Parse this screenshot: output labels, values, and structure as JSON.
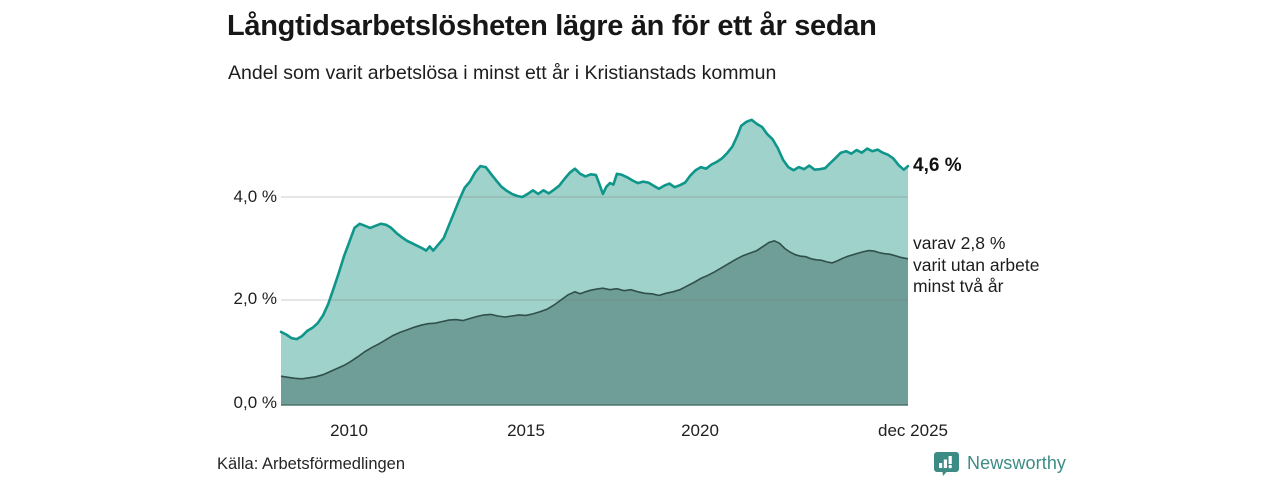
{
  "header": {
    "title": "Långtidsarbetslösheten lägre än för ett år sedan",
    "subtitle": "Andel som varit arbetslösa i minst ett år i Kristianstads kommun"
  },
  "chart_data": {
    "type": "area",
    "title": "Långtidsarbetslösheten lägre än för ett år sedan",
    "subtitle": "Andel som varit arbetslösa i minst ett år i Kristianstads kommun",
    "x_axis": {
      "min": 2008.0,
      "max": 2025.92,
      "ticks": [
        {
          "label": "2010",
          "year": 2010
        },
        {
          "label": "2015",
          "year": 2015
        },
        {
          "label": "2020",
          "year": 2020
        },
        {
          "label": "dec 2025",
          "year": 2025.92
        }
      ]
    },
    "y_axis": {
      "min": 0,
      "max": 5.7,
      "unit": "%",
      "ticks": [
        {
          "label": "0,0 %",
          "value": 0
        },
        {
          "label": "2,0 %",
          "value": 2
        },
        {
          "label": "4,0 %",
          "value": 4
        }
      ],
      "gridline_values": [
        2,
        4
      ]
    },
    "colors": {
      "line_total": "#0f968a",
      "fill_total": "#9fd2cb",
      "line_subset": "#31504b",
      "fill_subset": "#6f9d98",
      "axis_line": "#4e7b74",
      "gridline": "rgba(120,120,120,0.30)"
    },
    "series": [
      {
        "name": "Arbetslösa minst ett år",
        "end_value": 4.6,
        "points": [
          [
            2008.0,
            1.38
          ],
          [
            2008.15,
            1.33
          ],
          [
            2008.3,
            1.26
          ],
          [
            2008.45,
            1.24
          ],
          [
            2008.6,
            1.3
          ],
          [
            2008.75,
            1.4
          ],
          [
            2008.9,
            1.46
          ],
          [
            2009.05,
            1.55
          ],
          [
            2009.2,
            1.7
          ],
          [
            2009.35,
            1.92
          ],
          [
            2009.5,
            2.22
          ],
          [
            2009.65,
            2.52
          ],
          [
            2009.8,
            2.85
          ],
          [
            2009.95,
            3.12
          ],
          [
            2010.1,
            3.4
          ],
          [
            2010.25,
            3.48
          ],
          [
            2010.4,
            3.44
          ],
          [
            2010.55,
            3.4
          ],
          [
            2010.7,
            3.44
          ],
          [
            2010.85,
            3.48
          ],
          [
            2011.0,
            3.46
          ],
          [
            2011.15,
            3.4
          ],
          [
            2011.3,
            3.3
          ],
          [
            2011.45,
            3.22
          ],
          [
            2011.6,
            3.15
          ],
          [
            2011.75,
            3.1
          ],
          [
            2011.9,
            3.05
          ],
          [
            2012.05,
            3.0
          ],
          [
            2012.15,
            2.96
          ],
          [
            2012.25,
            3.04
          ],
          [
            2012.35,
            2.96
          ],
          [
            2012.5,
            3.08
          ],
          [
            2012.65,
            3.2
          ],
          [
            2012.8,
            3.45
          ],
          [
            2012.95,
            3.7
          ],
          [
            2013.1,
            3.95
          ],
          [
            2013.25,
            4.18
          ],
          [
            2013.4,
            4.3
          ],
          [
            2013.55,
            4.48
          ],
          [
            2013.7,
            4.6
          ],
          [
            2013.85,
            4.58
          ],
          [
            2014.0,
            4.45
          ],
          [
            2014.15,
            4.32
          ],
          [
            2014.3,
            4.2
          ],
          [
            2014.45,
            4.12
          ],
          [
            2014.6,
            4.06
          ],
          [
            2014.75,
            4.02
          ],
          [
            2014.9,
            4.0
          ],
          [
            2015.05,
            4.06
          ],
          [
            2015.2,
            4.13
          ],
          [
            2015.35,
            4.06
          ],
          [
            2015.5,
            4.13
          ],
          [
            2015.65,
            4.07
          ],
          [
            2015.8,
            4.14
          ],
          [
            2015.95,
            4.22
          ],
          [
            2016.1,
            4.35
          ],
          [
            2016.25,
            4.47
          ],
          [
            2016.4,
            4.55
          ],
          [
            2016.55,
            4.45
          ],
          [
            2016.7,
            4.4
          ],
          [
            2016.85,
            4.44
          ],
          [
            2017.0,
            4.43
          ],
          [
            2017.1,
            4.25
          ],
          [
            2017.2,
            4.06
          ],
          [
            2017.3,
            4.2
          ],
          [
            2017.4,
            4.27
          ],
          [
            2017.5,
            4.24
          ],
          [
            2017.6,
            4.45
          ],
          [
            2017.75,
            4.43
          ],
          [
            2017.9,
            4.38
          ],
          [
            2018.05,
            4.32
          ],
          [
            2018.2,
            4.27
          ],
          [
            2018.35,
            4.3
          ],
          [
            2018.5,
            4.28
          ],
          [
            2018.65,
            4.22
          ],
          [
            2018.8,
            4.16
          ],
          [
            2018.95,
            4.22
          ],
          [
            2019.1,
            4.26
          ],
          [
            2019.25,
            4.19
          ],
          [
            2019.4,
            4.23
          ],
          [
            2019.55,
            4.28
          ],
          [
            2019.7,
            4.42
          ],
          [
            2019.85,
            4.52
          ],
          [
            2020.0,
            4.58
          ],
          [
            2020.15,
            4.55
          ],
          [
            2020.3,
            4.63
          ],
          [
            2020.45,
            4.68
          ],
          [
            2020.6,
            4.75
          ],
          [
            2020.75,
            4.85
          ],
          [
            2020.9,
            4.98
          ],
          [
            2021.05,
            5.2
          ],
          [
            2021.15,
            5.38
          ],
          [
            2021.3,
            5.46
          ],
          [
            2021.45,
            5.5
          ],
          [
            2021.6,
            5.42
          ],
          [
            2021.75,
            5.36
          ],
          [
            2021.9,
            5.22
          ],
          [
            2022.05,
            5.12
          ],
          [
            2022.2,
            4.95
          ],
          [
            2022.35,
            4.72
          ],
          [
            2022.5,
            4.58
          ],
          [
            2022.65,
            4.52
          ],
          [
            2022.8,
            4.58
          ],
          [
            2022.95,
            4.54
          ],
          [
            2023.1,
            4.61
          ],
          [
            2023.25,
            4.53
          ],
          [
            2023.4,
            4.54
          ],
          [
            2023.55,
            4.56
          ],
          [
            2023.7,
            4.66
          ],
          [
            2023.85,
            4.76
          ],
          [
            2024.0,
            4.86
          ],
          [
            2024.15,
            4.89
          ],
          [
            2024.3,
            4.84
          ],
          [
            2024.45,
            4.91
          ],
          [
            2024.6,
            4.86
          ],
          [
            2024.75,
            4.94
          ],
          [
            2024.9,
            4.89
          ],
          [
            2025.05,
            4.92
          ],
          [
            2025.2,
            4.86
          ],
          [
            2025.35,
            4.82
          ],
          [
            2025.5,
            4.75
          ],
          [
            2025.65,
            4.62
          ],
          [
            2025.8,
            4.53
          ],
          [
            2025.92,
            4.6
          ]
        ]
      },
      {
        "name": "varav utan arbete minst två år",
        "end_value": 2.8,
        "points": [
          [
            2008.0,
            0.52
          ],
          [
            2008.2,
            0.5
          ],
          [
            2008.4,
            0.48
          ],
          [
            2008.6,
            0.47
          ],
          [
            2008.8,
            0.49
          ],
          [
            2009.0,
            0.51
          ],
          [
            2009.2,
            0.55
          ],
          [
            2009.4,
            0.61
          ],
          [
            2009.6,
            0.67
          ],
          [
            2009.8,
            0.73
          ],
          [
            2010.0,
            0.81
          ],
          [
            2010.2,
            0.9
          ],
          [
            2010.4,
            1.0
          ],
          [
            2010.6,
            1.08
          ],
          [
            2010.8,
            1.15
          ],
          [
            2011.0,
            1.23
          ],
          [
            2011.2,
            1.31
          ],
          [
            2011.4,
            1.37
          ],
          [
            2011.6,
            1.42
          ],
          [
            2011.8,
            1.47
          ],
          [
            2012.0,
            1.51
          ],
          [
            2012.2,
            1.54
          ],
          [
            2012.4,
            1.55
          ],
          [
            2012.6,
            1.58
          ],
          [
            2012.8,
            1.61
          ],
          [
            2013.0,
            1.62
          ],
          [
            2013.2,
            1.6
          ],
          [
            2013.4,
            1.64
          ],
          [
            2013.6,
            1.68
          ],
          [
            2013.8,
            1.71
          ],
          [
            2014.0,
            1.72
          ],
          [
            2014.2,
            1.69
          ],
          [
            2014.4,
            1.67
          ],
          [
            2014.6,
            1.69
          ],
          [
            2014.8,
            1.71
          ],
          [
            2015.0,
            1.7
          ],
          [
            2015.2,
            1.73
          ],
          [
            2015.4,
            1.77
          ],
          [
            2015.6,
            1.82
          ],
          [
            2015.8,
            1.9
          ],
          [
            2016.0,
            2.0
          ],
          [
            2016.2,
            2.1
          ],
          [
            2016.4,
            2.16
          ],
          [
            2016.55,
            2.12
          ],
          [
            2016.7,
            2.16
          ],
          [
            2016.85,
            2.19
          ],
          [
            2017.0,
            2.21
          ],
          [
            2017.2,
            2.23
          ],
          [
            2017.4,
            2.2
          ],
          [
            2017.6,
            2.22
          ],
          [
            2017.8,
            2.18
          ],
          [
            2018.0,
            2.2
          ],
          [
            2018.2,
            2.16
          ],
          [
            2018.4,
            2.13
          ],
          [
            2018.6,
            2.12
          ],
          [
            2018.8,
            2.09
          ],
          [
            2019.0,
            2.13
          ],
          [
            2019.2,
            2.16
          ],
          [
            2019.4,
            2.2
          ],
          [
            2019.6,
            2.27
          ],
          [
            2019.8,
            2.34
          ],
          [
            2020.0,
            2.42
          ],
          [
            2020.2,
            2.48
          ],
          [
            2020.4,
            2.55
          ],
          [
            2020.6,
            2.63
          ],
          [
            2020.8,
            2.71
          ],
          [
            2021.0,
            2.79
          ],
          [
            2021.2,
            2.86
          ],
          [
            2021.4,
            2.91
          ],
          [
            2021.6,
            2.96
          ],
          [
            2021.8,
            3.05
          ],
          [
            2021.95,
            3.12
          ],
          [
            2022.1,
            3.15
          ],
          [
            2022.25,
            3.1
          ],
          [
            2022.4,
            3.0
          ],
          [
            2022.55,
            2.93
          ],
          [
            2022.7,
            2.88
          ],
          [
            2022.85,
            2.85
          ],
          [
            2023.0,
            2.84
          ],
          [
            2023.15,
            2.8
          ],
          [
            2023.3,
            2.78
          ],
          [
            2023.45,
            2.77
          ],
          [
            2023.6,
            2.74
          ],
          [
            2023.75,
            2.72
          ],
          [
            2023.9,
            2.76
          ],
          [
            2024.05,
            2.81
          ],
          [
            2024.2,
            2.85
          ],
          [
            2024.35,
            2.88
          ],
          [
            2024.5,
            2.91
          ],
          [
            2024.65,
            2.94
          ],
          [
            2024.8,
            2.96
          ],
          [
            2024.95,
            2.95
          ],
          [
            2025.1,
            2.92
          ],
          [
            2025.25,
            2.9
          ],
          [
            2025.4,
            2.89
          ],
          [
            2025.55,
            2.86
          ],
          [
            2025.7,
            2.83
          ],
          [
            2025.92,
            2.8
          ]
        ]
      }
    ],
    "annotations": {
      "end_value_label": "4,6 %",
      "subset_line_1": "varav 2,8 %",
      "subset_line_2": "varit utan arbete",
      "subset_line_3": "minst två år"
    }
  },
  "source": {
    "label": "Källa: Arbetsförmedlingen"
  },
  "branding": {
    "name": "Newsworthy",
    "color": "#3c8c85"
  }
}
